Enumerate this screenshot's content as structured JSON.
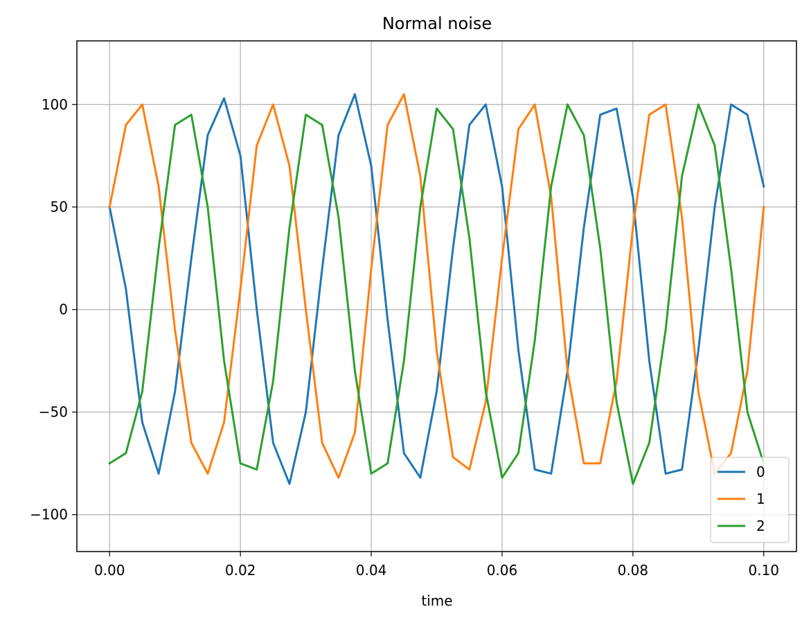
{
  "chart_data": {
    "type": "line",
    "title": "Normal noise",
    "xlabel": "time",
    "ylabel": "",
    "xlim": [
      -0.005,
      0.105
    ],
    "ylim": [
      -118,
      131
    ],
    "xticks": [
      0.0,
      0.02,
      0.04,
      0.06,
      0.08,
      0.1
    ],
    "xtick_labels": [
      "0.00",
      "0.02",
      "0.04",
      "0.06",
      "0.08",
      "0.10"
    ],
    "yticks": [
      -100,
      -50,
      0,
      50,
      100
    ],
    "ytick_labels": [
      "−100",
      "−50",
      "0",
      "50",
      "100"
    ],
    "grid": true,
    "legend_position": "lower-right",
    "series": [
      {
        "name": "0",
        "color": "#1f77b4",
        "x": [
          0.0,
          0.0025,
          0.005,
          0.0075,
          0.01,
          0.0125,
          0.015,
          0.0175,
          0.02,
          0.0225,
          0.025,
          0.0275,
          0.03,
          0.0325,
          0.035,
          0.0375,
          0.04,
          0.0425,
          0.045,
          0.0475,
          0.05,
          0.0525,
          0.055,
          0.0575,
          0.06,
          0.0625,
          0.065,
          0.0675,
          0.07,
          0.0725,
          0.075,
          0.0775,
          0.08,
          0.0825,
          0.085,
          0.0875,
          0.09,
          0.0925,
          0.095,
          0.0975,
          0.1
        ],
        "y": [
          50,
          10,
          -55,
          -80,
          -40,
          25,
          85,
          103,
          75,
          0,
          -65,
          -85,
          -50,
          20,
          85,
          105,
          70,
          -5,
          -70,
          -82,
          -40,
          30,
          90,
          100,
          60,
          -20,
          -78,
          -80,
          -30,
          40,
          95,
          98,
          55,
          -25,
          -80,
          -78,
          -20,
          50,
          100,
          95,
          60
        ]
      },
      {
        "name": "1",
        "color": "#ff7f0e",
        "x": [
          0.0,
          0.0025,
          0.005,
          0.0075,
          0.01,
          0.0125,
          0.015,
          0.0175,
          0.02,
          0.0225,
          0.025,
          0.0275,
          0.03,
          0.0325,
          0.035,
          0.0375,
          0.04,
          0.0425,
          0.045,
          0.0475,
          0.05,
          0.0525,
          0.055,
          0.0575,
          0.06,
          0.0625,
          0.065,
          0.0675,
          0.07,
          0.0725,
          0.075,
          0.0775,
          0.08,
          0.0825,
          0.085,
          0.0875,
          0.09,
          0.0925,
          0.095,
          0.0975,
          0.1
        ],
        "y": [
          50,
          90,
          100,
          60,
          -10,
          -65,
          -80,
          -55,
          10,
          80,
          100,
          70,
          0,
          -65,
          -82,
          -60,
          20,
          90,
          105,
          65,
          -20,
          -72,
          -78,
          -45,
          25,
          88,
          100,
          55,
          -30,
          -75,
          -75,
          -35,
          40,
          95,
          100,
          45,
          -40,
          -80,
          -70,
          -30,
          50
        ]
      },
      {
        "name": "2",
        "color": "#2ca02c",
        "x": [
          0.0,
          0.0025,
          0.005,
          0.0075,
          0.01,
          0.0125,
          0.015,
          0.0175,
          0.02,
          0.0225,
          0.025,
          0.0275,
          0.03,
          0.0325,
          0.035,
          0.0375,
          0.04,
          0.0425,
          0.045,
          0.0475,
          0.05,
          0.0525,
          0.055,
          0.0575,
          0.06,
          0.0625,
          0.065,
          0.0675,
          0.07,
          0.0725,
          0.075,
          0.0775,
          0.08,
          0.0825,
          0.085,
          0.0875,
          0.09,
          0.0925,
          0.095,
          0.0975,
          0.1
        ],
        "y": [
          -75,
          -70,
          -40,
          30,
          90,
          95,
          50,
          -25,
          -75,
          -78,
          -35,
          40,
          95,
          90,
          45,
          -30,
          -80,
          -75,
          -25,
          50,
          98,
          88,
          35,
          -40,
          -82,
          -70,
          -15,
          60,
          100,
          85,
          30,
          -45,
          -85,
          -65,
          -10,
          65,
          100,
          80,
          20,
          -50,
          -75
        ]
      }
    ]
  }
}
